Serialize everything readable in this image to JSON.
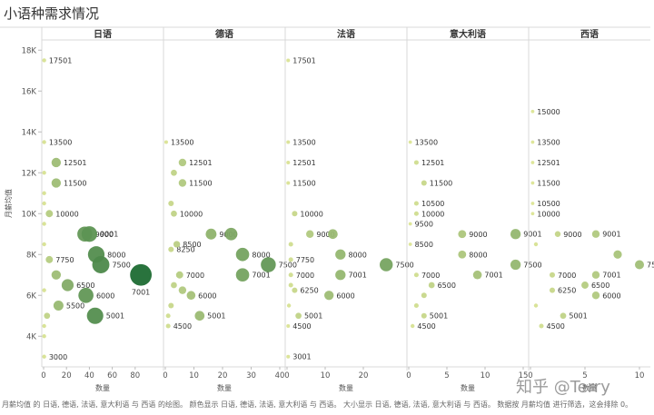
{
  "title": "小语种需求情况",
  "footer_note": "月薪均值 的 日语, 德语, 法语, 意大利语 与 西语 的绘图。 颜色显示 日语, 德语, 法语, 意大利语 与 西语。 大小显示 日语, 德语, 法语, 意大利语 与 西语。 数据按 月薪均值 进行筛选，这会排除 0。",
  "watermark": "知乎 @Terry",
  "chart_data": {
    "type": "scatter",
    "title": "小语种需求情况",
    "ylabel": "月薪均值",
    "ylim": [
      2500,
      18500
    ],
    "y_ticks": [
      4000,
      6000,
      8000,
      10000,
      12000,
      14000,
      16000,
      18000
    ],
    "y_tick_labels": [
      "4K",
      "6K",
      "8K",
      "10K",
      "12K",
      "14K",
      "16K",
      "18K"
    ],
    "grid": false,
    "color_range": [
      "#e6eb9a",
      "#1e6b33"
    ],
    "panels": [
      {
        "name": "日语",
        "xlabel": "数量",
        "xlim": [
          0,
          100
        ],
        "x_ticks": [
          0,
          20,
          40,
          60,
          80
        ],
        "points": [
          {
            "x": 0.5,
            "y": 17501,
            "label": "17501"
          },
          {
            "x": 0.5,
            "y": 13500,
            "label": "13500"
          },
          {
            "x": 11,
            "y": 12501,
            "label": "12501"
          },
          {
            "x": 0.5,
            "y": 12000,
            "label": ""
          },
          {
            "x": 11,
            "y": 11500,
            "label": "11500"
          },
          {
            "x": 0.5,
            "y": 11000,
            "label": ""
          },
          {
            "x": 0.5,
            "y": 10500,
            "label": ""
          },
          {
            "x": 5,
            "y": 10000,
            "label": "10000"
          },
          {
            "x": 0.5,
            "y": 9500,
            "label": ""
          },
          {
            "x": 36,
            "y": 9000,
            "label": "9000"
          },
          {
            "x": 40,
            "y": 9001,
            "label": "9001"
          },
          {
            "x": 0.5,
            "y": 8500,
            "label": ""
          },
          {
            "x": 46,
            "y": 8000,
            "label": "8000"
          },
          {
            "x": 5,
            "y": 7750,
            "label": "7750"
          },
          {
            "x": 50,
            "y": 7500,
            "label": "7500"
          },
          {
            "x": 85,
            "y": 7001,
            "label": "7001"
          },
          {
            "x": 11,
            "y": 7000,
            "label": ""
          },
          {
            "x": 21,
            "y": 6500,
            "label": "6500"
          },
          {
            "x": 0.5,
            "y": 6250,
            "label": ""
          },
          {
            "x": 37,
            "y": 6000,
            "label": "6000"
          },
          {
            "x": 13,
            "y": 5500,
            "label": "5500"
          },
          {
            "x": 45,
            "y": 5001,
            "label": "5001"
          },
          {
            "x": 3,
            "y": 5000,
            "label": ""
          },
          {
            "x": 0.5,
            "y": 4500,
            "label": ""
          },
          {
            "x": 0.5,
            "y": 4000,
            "label": ""
          },
          {
            "x": 0.5,
            "y": 3000,
            "label": "3000"
          }
        ]
      },
      {
        "name": "德语",
        "xlabel": "数量",
        "xlim": [
          0,
          40
        ],
        "x_ticks": [
          0,
          10,
          20,
          30,
          40
        ],
        "points": [
          {
            "x": 0.3,
            "y": 13500,
            "label": "13500"
          },
          {
            "x": 6,
            "y": 12501,
            "label": "12501"
          },
          {
            "x": 3,
            "y": 12000,
            "label": ""
          },
          {
            "x": 6,
            "y": 11500,
            "label": "11500"
          },
          {
            "x": 2,
            "y": 10500,
            "label": ""
          },
          {
            "x": 3,
            "y": 10000,
            "label": "10000"
          },
          {
            "x": 16,
            "y": 9000,
            "label": "9000"
          },
          {
            "x": 23,
            "y": 9001,
            "label": ""
          },
          {
            "x": 4,
            "y": 8500,
            "label": "8500"
          },
          {
            "x": 2,
            "y": 8250,
            "label": "8250"
          },
          {
            "x": 27,
            "y": 8000,
            "label": "8000"
          },
          {
            "x": 36,
            "y": 7500,
            "label": "7500"
          },
          {
            "x": 5,
            "y": 7000,
            "label": "7000"
          },
          {
            "x": 27,
            "y": 7001,
            "label": "7001"
          },
          {
            "x": 3,
            "y": 6500,
            "label": ""
          },
          {
            "x": 6,
            "y": 6250,
            "label": ""
          },
          {
            "x": 9,
            "y": 6000,
            "label": "6000"
          },
          {
            "x": 2,
            "y": 5500,
            "label": ""
          },
          {
            "x": 1,
            "y": 5000,
            "label": ""
          },
          {
            "x": 1,
            "y": 4500,
            "label": "4500"
          },
          {
            "x": 12,
            "y": 5001,
            "label": "5001"
          }
        ]
      },
      {
        "name": "法语",
        "xlabel": "数量",
        "xlim": [
          0,
          30
        ],
        "x_ticks": [
          0,
          10,
          20
        ],
        "points": [
          {
            "x": 0.3,
            "y": 17501,
            "label": "17501"
          },
          {
            "x": 0.3,
            "y": 13500,
            "label": "13500"
          },
          {
            "x": 0.3,
            "y": 12501,
            "label": "12501"
          },
          {
            "x": 0.3,
            "y": 11500,
            "label": "11500"
          },
          {
            "x": 2,
            "y": 10000,
            "label": "10000"
          },
          {
            "x": 6,
            "y": 9000,
            "label": "9000"
          },
          {
            "x": 12,
            "y": 9001,
            "label": ""
          },
          {
            "x": 1,
            "y": 8500,
            "label": ""
          },
          {
            "x": 14,
            "y": 8000,
            "label": "8000"
          },
          {
            "x": 1,
            "y": 7750,
            "label": "7750"
          },
          {
            "x": 26,
            "y": 7500,
            "label": "7500"
          },
          {
            "x": 1,
            "y": 7000,
            "label": "7000"
          },
          {
            "x": 14,
            "y": 7001,
            "label": "7001"
          },
          {
            "x": 1,
            "y": 6500,
            "label": ""
          },
          {
            "x": 2,
            "y": 6250,
            "label": "6250"
          },
          {
            "x": 11,
            "y": 6000,
            "label": "6000"
          },
          {
            "x": 0.5,
            "y": 5500,
            "label": ""
          },
          {
            "x": 3,
            "y": 5001,
            "label": "5001"
          },
          {
            "x": 0.3,
            "y": 4500,
            "label": "4500"
          },
          {
            "x": 0.3,
            "y": 3001,
            "label": "3001"
          }
        ]
      },
      {
        "name": "意大利语",
        "xlabel": "数量",
        "xlim": [
          0,
          15
        ],
        "x_ticks": [
          0,
          5,
          10,
          15
        ],
        "points": [
          {
            "x": 0.2,
            "y": 13500,
            "label": "13500"
          },
          {
            "x": 1,
            "y": 12501,
            "label": "12501"
          },
          {
            "x": 2,
            "y": 11500,
            "label": "11500"
          },
          {
            "x": 1,
            "y": 10500,
            "label": "10500"
          },
          {
            "x": 1,
            "y": 10000,
            "label": "10000"
          },
          {
            "x": 0.2,
            "y": 9500,
            "label": "9500"
          },
          {
            "x": 7,
            "y": 9000,
            "label": "9000"
          },
          {
            "x": 14,
            "y": 9001,
            "label": "9001"
          },
          {
            "x": 0.2,
            "y": 8500,
            "label": "8500"
          },
          {
            "x": 7,
            "y": 8000,
            "label": "8000"
          },
          {
            "x": 14,
            "y": 7500,
            "label": "7500"
          },
          {
            "x": 1,
            "y": 7000,
            "label": "7000"
          },
          {
            "x": 9,
            "y": 7001,
            "label": "7001"
          },
          {
            "x": 3,
            "y": 6500,
            "label": "6500"
          },
          {
            "x": 2,
            "y": 6000,
            "label": ""
          },
          {
            "x": 1,
            "y": 5500,
            "label": ""
          },
          {
            "x": 2,
            "y": 5001,
            "label": "5001"
          },
          {
            "x": 0.5,
            "y": 4500,
            "label": "4500"
          }
        ]
      },
      {
        "name": "西语",
        "xlabel": "数量",
        "xlim": [
          0,
          10.5
        ],
        "x_ticks": [
          0,
          5,
          10
        ],
        "points": [
          {
            "x": 0.2,
            "y": 15000,
            "label": "15000"
          },
          {
            "x": 0.2,
            "y": 13500,
            "label": "13500"
          },
          {
            "x": 0.2,
            "y": 12501,
            "label": "12501"
          },
          {
            "x": 0.2,
            "y": 11500,
            "label": "11500"
          },
          {
            "x": 0.2,
            "y": 10500,
            "label": "10500"
          },
          {
            "x": 0.2,
            "y": 10000,
            "label": "10000"
          },
          {
            "x": 2.5,
            "y": 9000,
            "label": "9000"
          },
          {
            "x": 6,
            "y": 9001,
            "label": "9001"
          },
          {
            "x": 0.5,
            "y": 8500,
            "label": ""
          },
          {
            "x": 8,
            "y": 8000,
            "label": ""
          },
          {
            "x": 10,
            "y": 7500,
            "label": "7500"
          },
          {
            "x": 2,
            "y": 7000,
            "label": "7000"
          },
          {
            "x": 6,
            "y": 7001,
            "label": "7001"
          },
          {
            "x": 5,
            "y": 6500,
            "label": "6500"
          },
          {
            "x": 2,
            "y": 6250,
            "label": "6250"
          },
          {
            "x": 6,
            "y": 6000,
            "label": "6000"
          },
          {
            "x": 3,
            "y": 5001,
            "label": "5001"
          },
          {
            "x": 0.5,
            "y": 5500,
            "label": ""
          },
          {
            "x": 1,
            "y": 4500,
            "label": "4500"
          }
        ]
      }
    ]
  }
}
